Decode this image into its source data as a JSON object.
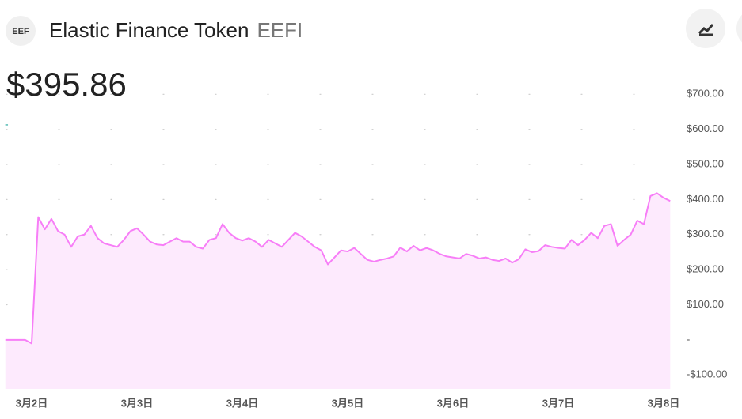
{
  "header": {
    "icon": "EEF",
    "name": "Elastic Finance Token",
    "symbol": "EEFI",
    "price": "$395.86",
    "change": "-"
  },
  "chart_data": {
    "type": "area",
    "categories": [
      null,
      null,
      null,
      null,
      "3月2日",
      null,
      null,
      null,
      null,
      null,
      null,
      null,
      null,
      null,
      null,
      null,
      null,
      null,
      null,
      null,
      "3月3日",
      null,
      null,
      null,
      null,
      null,
      null,
      null,
      null,
      null,
      null,
      null,
      null,
      null,
      null,
      null,
      "3月4日",
      null,
      null,
      null,
      null,
      null,
      null,
      null,
      null,
      null,
      null,
      null,
      null,
      null,
      null,
      null,
      "3月5日",
      null,
      null,
      null,
      null,
      null,
      null,
      null,
      null,
      null,
      null,
      null,
      null,
      null,
      null,
      null,
      "3月6日",
      null,
      null,
      null,
      null,
      null,
      null,
      null,
      null,
      null,
      null,
      null,
      null,
      null,
      null,
      null,
      "3月7日",
      null,
      null,
      null,
      null,
      null,
      null,
      null,
      null,
      null,
      null,
      null,
      null,
      null,
      null,
      null,
      "3月8日",
      null
    ],
    "series": [
      {
        "color": "#f77ef7",
        "fill": "#fdeafd",
        "values": [
          0,
          0,
          0,
          0,
          -10,
          350,
          315,
          345,
          310,
          300,
          265,
          295,
          300,
          325,
          290,
          275,
          270,
          265,
          285,
          310,
          318,
          300,
          280,
          272,
          270,
          280,
          290,
          280,
          280,
          265,
          260,
          285,
          290,
          330,
          305,
          290,
          283,
          290,
          280,
          265,
          285,
          275,
          265,
          285,
          305,
          295,
          280,
          265,
          255,
          215,
          235,
          255,
          252,
          262,
          245,
          228,
          223,
          228,
          232,
          238,
          263,
          252,
          268,
          255,
          262,
          255,
          245,
          238,
          235,
          232,
          245,
          240,
          232,
          235,
          228,
          225,
          232,
          220,
          230,
          258,
          250,
          253,
          270,
          265,
          262,
          260,
          285,
          270,
          285,
          305,
          290,
          325,
          330,
          268,
          285,
          300,
          340,
          330,
          410,
          418,
          405,
          395.86
        ]
      }
    ],
    "ylim": [
      -140,
      748
    ],
    "yticks": [
      {
        "value": -100,
        "label": "-$100.00"
      },
      {
        "value": 0,
        "label": "-"
      },
      {
        "value": 100,
        "label": "$100.00"
      },
      {
        "value": 200,
        "label": "$200.00"
      },
      {
        "value": 300,
        "label": "$300.00"
      },
      {
        "value": 400,
        "label": "$400.00"
      },
      {
        "value": 500,
        "label": "$500.00"
      },
      {
        "value": 600,
        "label": "$600.00"
      },
      {
        "value": 700,
        "label": "$700.00"
      }
    ],
    "grid": true
  }
}
